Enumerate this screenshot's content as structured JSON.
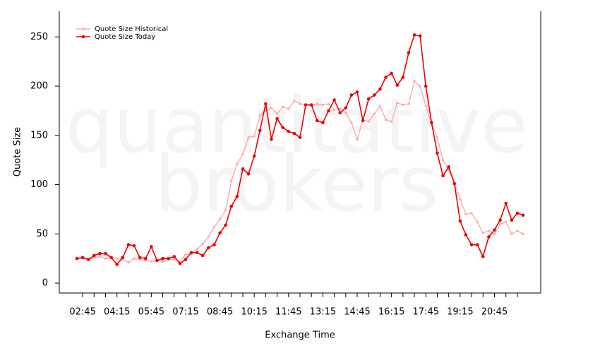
{
  "chart_data": {
    "type": "line",
    "watermark": [
      "quantitative",
      "brokers"
    ],
    "x_label": "Exchange Time",
    "y_label": "Quote Size",
    "categories": [
      null,
      "02:45",
      null,
      null,
      null,
      null,
      null,
      "04:15",
      null,
      null,
      null,
      null,
      null,
      "05:45",
      null,
      null,
      null,
      null,
      null,
      "07:15",
      null,
      null,
      null,
      null,
      null,
      "08:45",
      null,
      null,
      null,
      null,
      null,
      "10:15",
      null,
      null,
      null,
      null,
      null,
      "11:45",
      null,
      null,
      null,
      null,
      null,
      "13:15",
      null,
      null,
      null,
      null,
      null,
      "14:45",
      null,
      null,
      null,
      null,
      null,
      "16:15",
      null,
      null,
      null,
      null,
      null,
      "17:45",
      null,
      null,
      null,
      null,
      null,
      "19:15",
      null,
      null,
      null,
      null,
      null,
      "20:45",
      null,
      null,
      null,
      null,
      null
    ],
    "series": [
      {
        "name": "Quote Size Historical",
        "color": "#ffaaaa",
        "values": [
          25,
          25,
          24,
          26,
          27,
          25,
          26,
          25,
          24,
          21,
          25,
          24,
          23,
          22,
          23,
          22,
          24,
          24,
          22,
          29,
          30,
          34,
          40,
          47,
          57,
          65,
          74,
          104,
          121,
          131,
          148,
          149,
          170,
          175,
          178,
          172,
          179,
          177,
          185,
          182,
          181,
          180,
          182,
          181,
          182,
          176,
          177,
          173,
          163,
          146,
          166,
          164,
          172,
          180,
          166,
          164,
          183,
          181,
          182,
          205,
          200,
          180,
          162,
          148,
          125,
          115,
          102,
          85,
          70,
          71,
          62,
          51,
          53,
          50,
          60,
          62,
          50,
          53,
          50
        ]
      },
      {
        "name": "Quote Size Today",
        "color": "#ee0000",
        "values": [
          25,
          26,
          24,
          28,
          30,
          30,
          26,
          19,
          26,
          39,
          38,
          26,
          25,
          37,
          23,
          25,
          25,
          27,
          20,
          24,
          31,
          31,
          28,
          36,
          39,
          51,
          59,
          78,
          88,
          116,
          111,
          129,
          155,
          182,
          146,
          167,
          158,
          154,
          152,
          148,
          181,
          181,
          165,
          163,
          175,
          186,
          173,
          178,
          191,
          194,
          165,
          187,
          191,
          197,
          209,
          213,
          201,
          209,
          234,
          252,
          251,
          200,
          163,
          132,
          109,
          118,
          101,
          63,
          49,
          39,
          39,
          27,
          47,
          54,
          64,
          81,
          64,
          71,
          69
        ]
      }
    ],
    "ylim": [
      -10,
      276
    ],
    "yticks": [
      0,
      50,
      100,
      150,
      200,
      250
    ],
    "legend": "top-left"
  }
}
